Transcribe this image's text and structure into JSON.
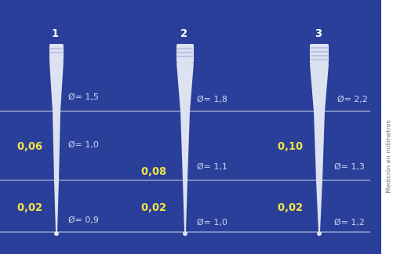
{
  "title": "",
  "instruments": [
    {
      "number": "1",
      "diameters": [
        "Ø= 1,5",
        "Ø= 1,0",
        "Ø= 0,9"
      ],
      "tapers": [
        "0,06",
        "0,02"
      ]
    },
    {
      "number": "2",
      "diameters": [
        "Ø= 1,8",
        "Ø= 1,1",
        "Ø= 1,0"
      ],
      "tapers": [
        "0,08",
        "0,02"
      ]
    },
    {
      "number": "3",
      "diameters": [
        "Ø= 2,2",
        "Ø= 1,3",
        "Ø= 1,2"
      ],
      "tapers": [
        "0,10",
        "0,02"
      ]
    }
  ],
  "side_caption": "Medición en milímetros",
  "colors": {
    "background": "#2a3f99",
    "taper_label": "#f2e34a",
    "diameter_label": "#c9d2ef",
    "instrument": "#dde2f0",
    "guide_line": "#c8d0ee"
  }
}
